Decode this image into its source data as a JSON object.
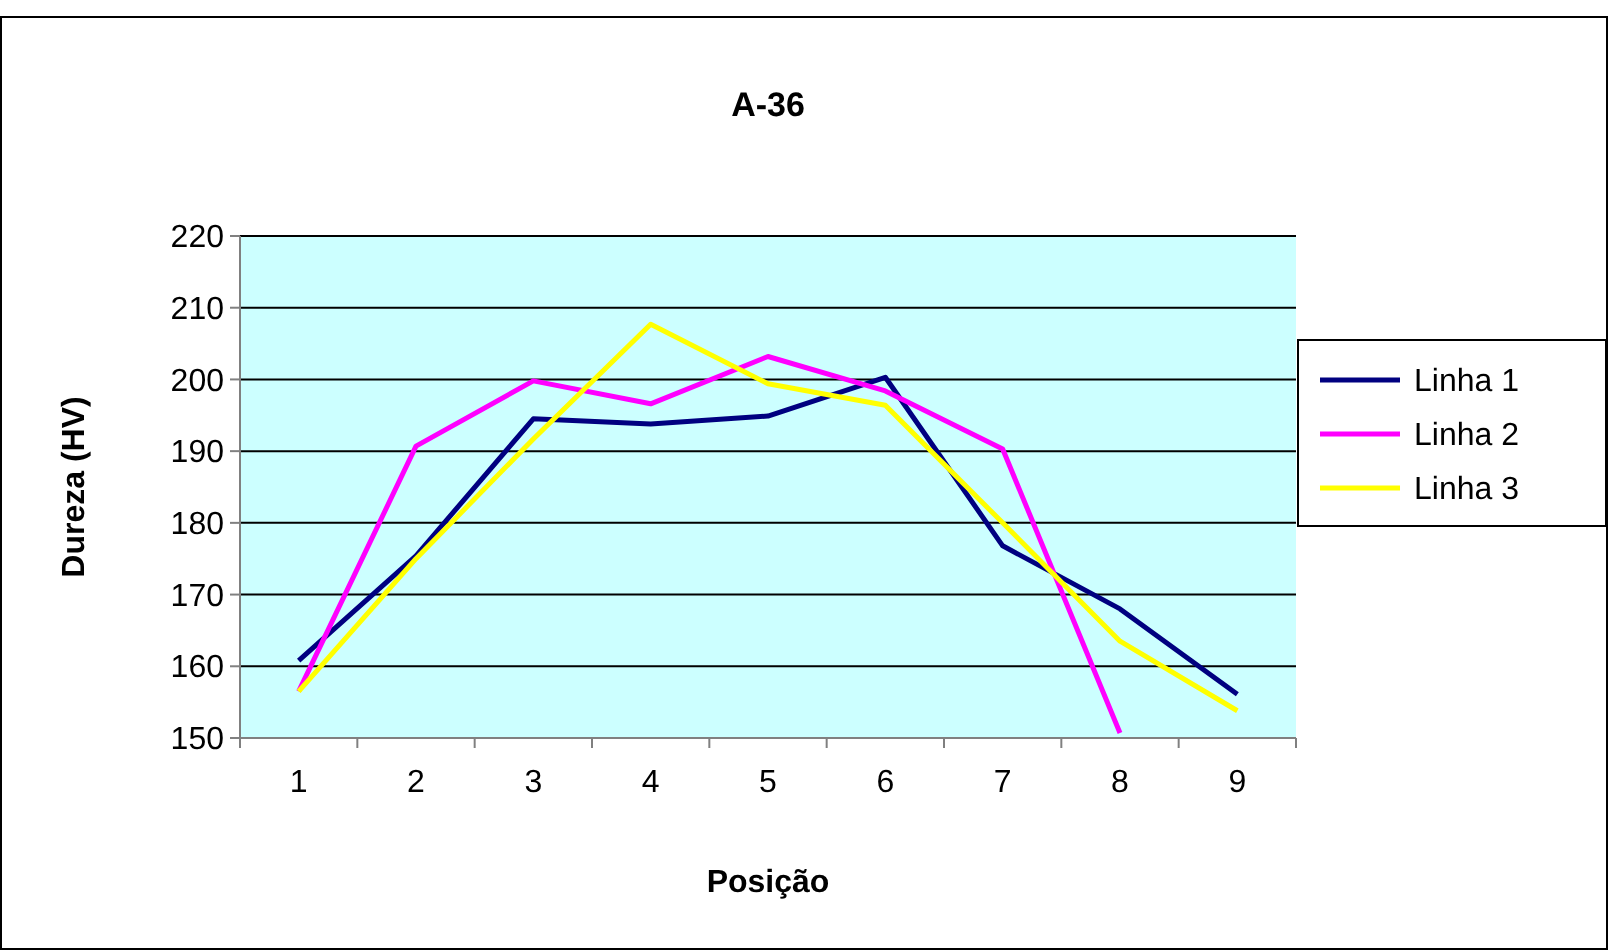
{
  "chart_data": {
    "type": "line",
    "title": "A-36",
    "xlabel": "Posição",
    "ylabel": "Dureza (HV)",
    "categories": [
      "1",
      "2",
      "3",
      "4",
      "5",
      "6",
      "7",
      "8",
      "9"
    ],
    "series": [
      {
        "name": "Linha 1",
        "color": "#000080",
        "values": [
          160.8,
          175.4,
          194.5,
          193.8,
          194.9,
          200.3,
          176.8,
          168.0,
          156.1
        ]
      },
      {
        "name": "Linha 2",
        "color": "#ff00ff",
        "values": [
          156.5,
          190.7,
          199.8,
          196.6,
          203.2,
          198.4,
          190.3,
          150.7,
          null
        ]
      },
      {
        "name": "Linha 3",
        "color": "#ffff00",
        "values": [
          156.5,
          175.0,
          191.7,
          207.7,
          199.4,
          196.4,
          180.0,
          163.5,
          153.8
        ]
      }
    ],
    "ylim": [
      150,
      220
    ],
    "yticks": [
      150,
      160,
      170,
      180,
      190,
      200,
      210,
      220
    ],
    "grid": "y",
    "legend": "right",
    "marker": "none",
    "line_style": "solid"
  }
}
